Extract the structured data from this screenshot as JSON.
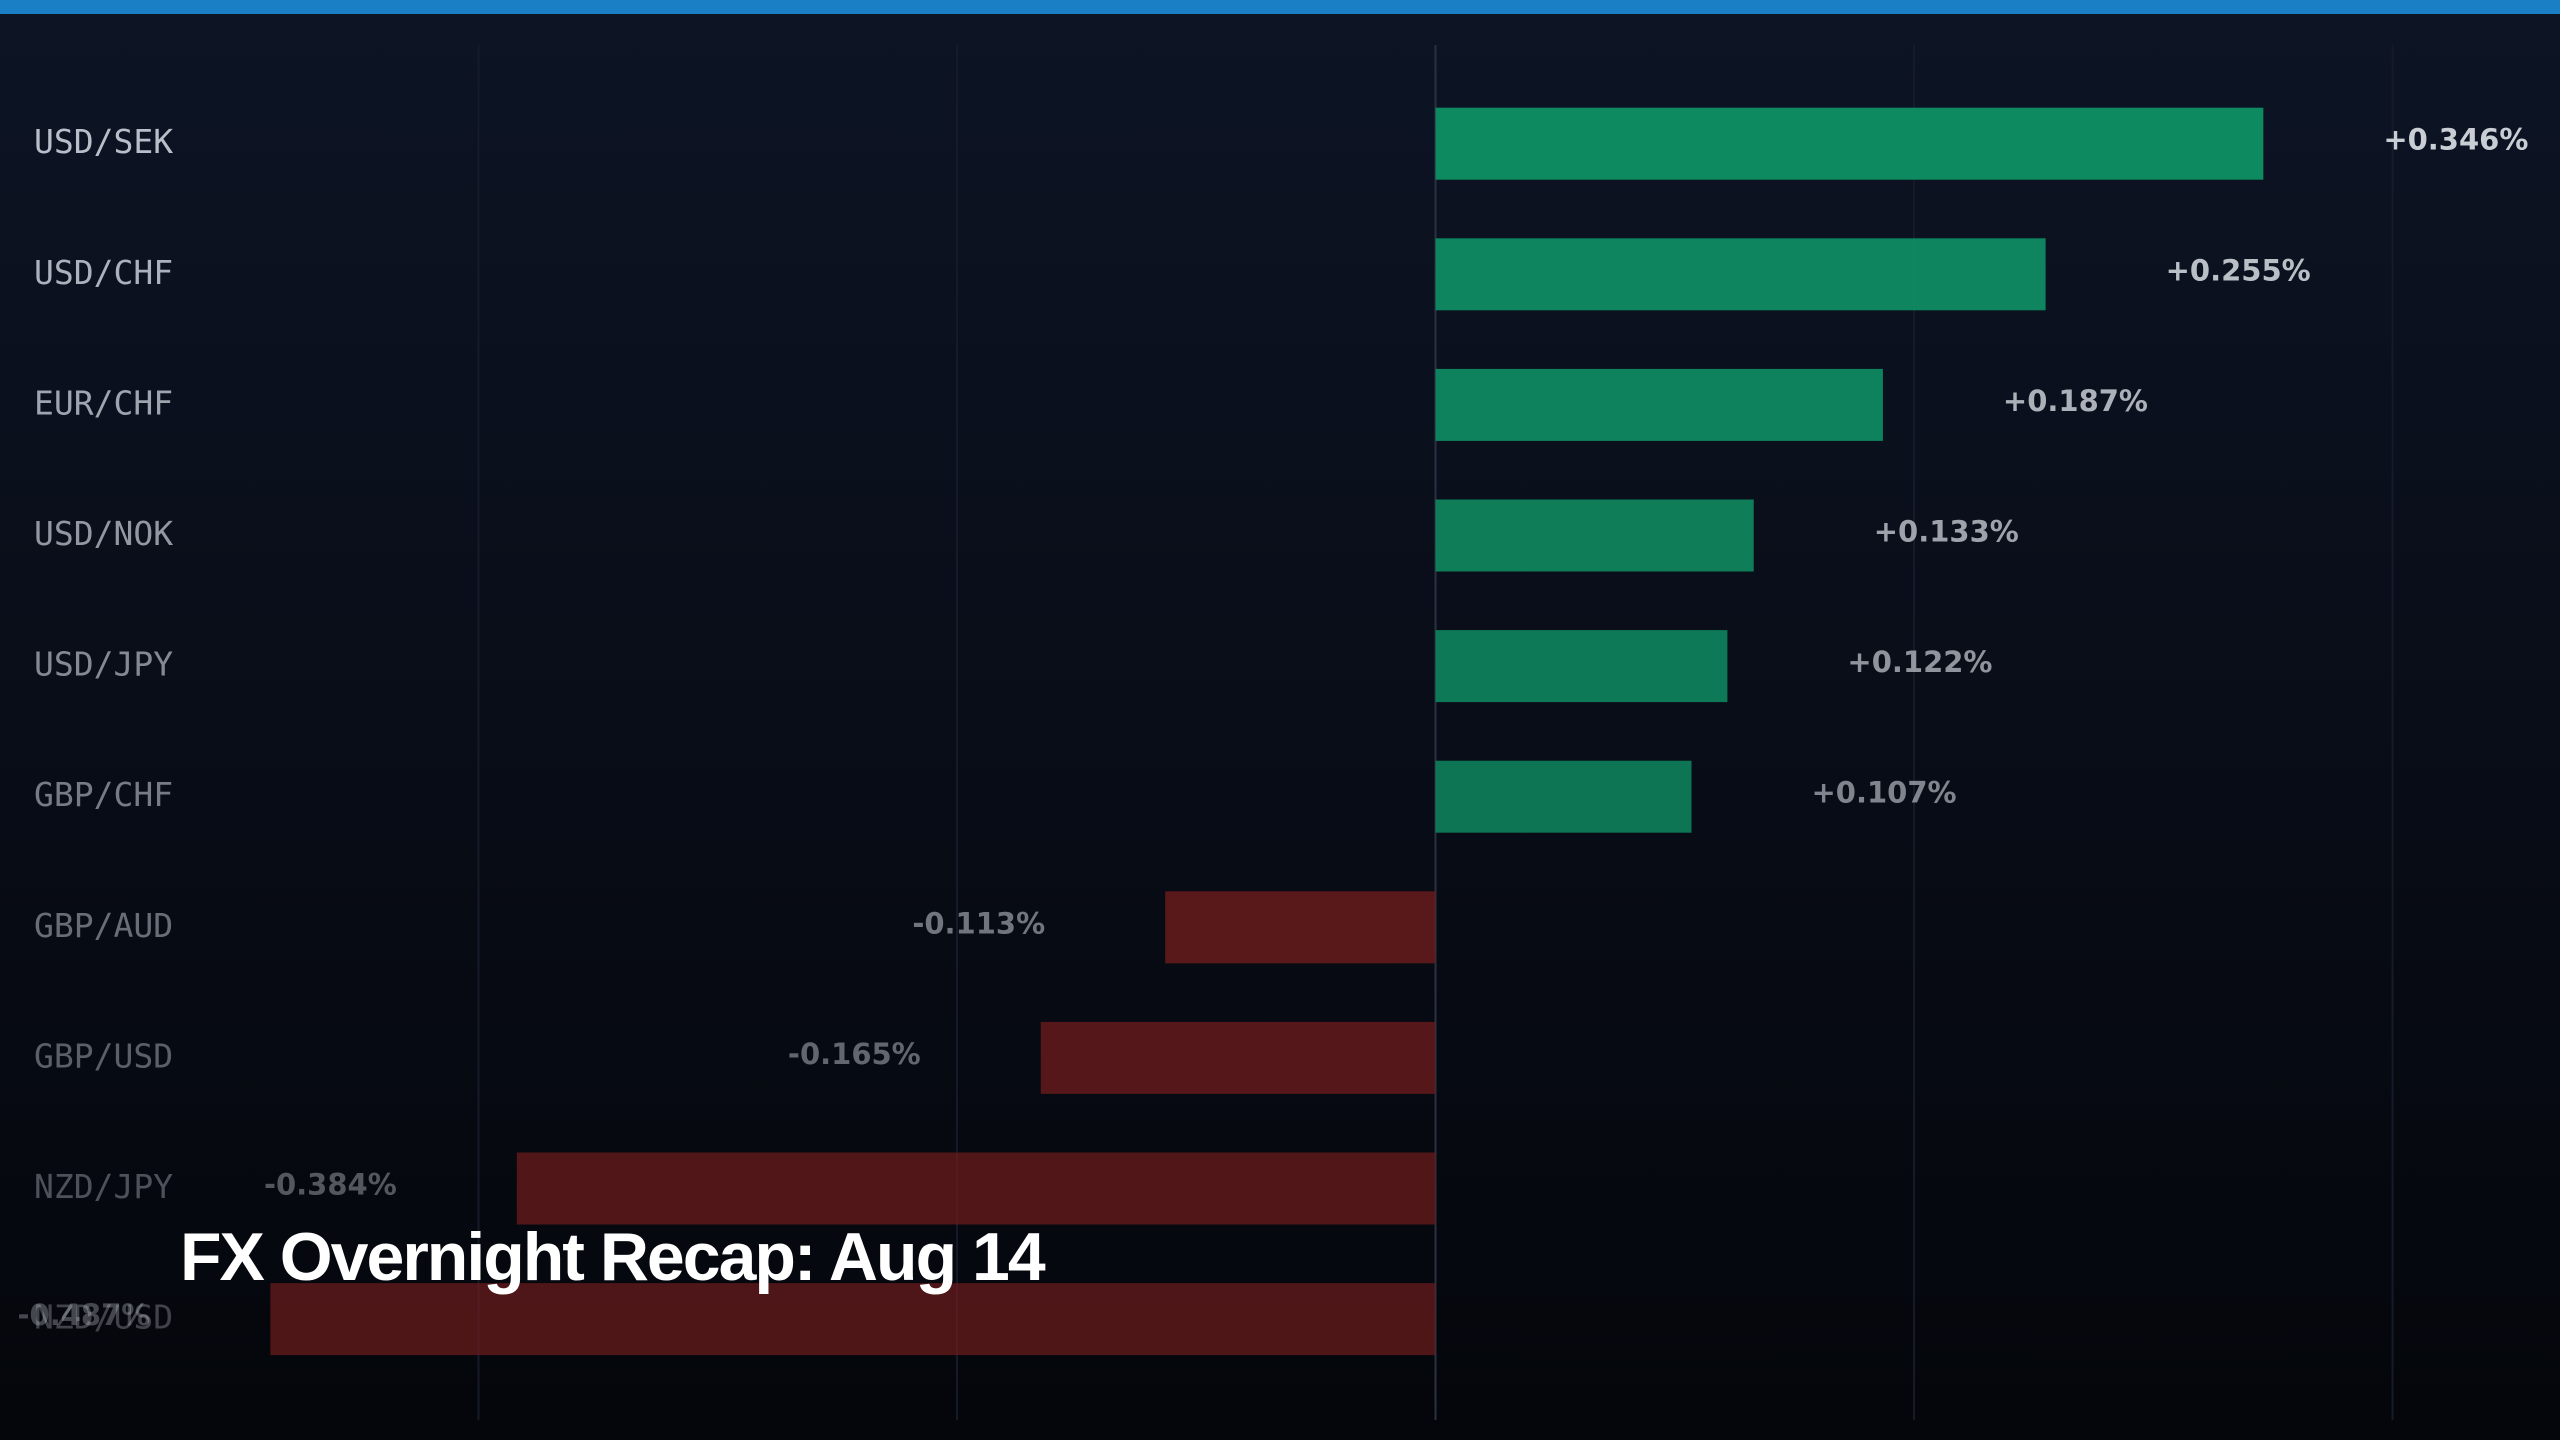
{
  "chart_data": {
    "type": "hbar",
    "title": "FX Overnight Recap: Aug 14",
    "categories": [
      "USD/SEK",
      "USD/CHF",
      "EUR/CHF",
      "USD/NOK",
      "USD/JPY",
      "GBP/CHF",
      "GBP/AUD",
      "GBP/USD",
      "NZD/JPY",
      "NZD/USD"
    ],
    "values": [
      0.346,
      0.255,
      0.187,
      0.133,
      0.122,
      0.107,
      -0.113,
      -0.165,
      -0.384,
      -0.487
    ],
    "value_labels": [
      "+0.346%",
      "+0.255%",
      "+0.187%",
      "+0.133%",
      "+0.122%",
      "+0.107%",
      "-0.113%",
      "-0.165%",
      "-0.384%",
      "-0.487%"
    ],
    "positive_color": "#0e8a60",
    "negative_color": "#6e1c1c",
    "xlim": [
      -0.6,
      0.47
    ],
    "xticks": [
      -0.4,
      -0.2,
      0,
      0.2,
      0.4
    ],
    "grid": true
  }
}
